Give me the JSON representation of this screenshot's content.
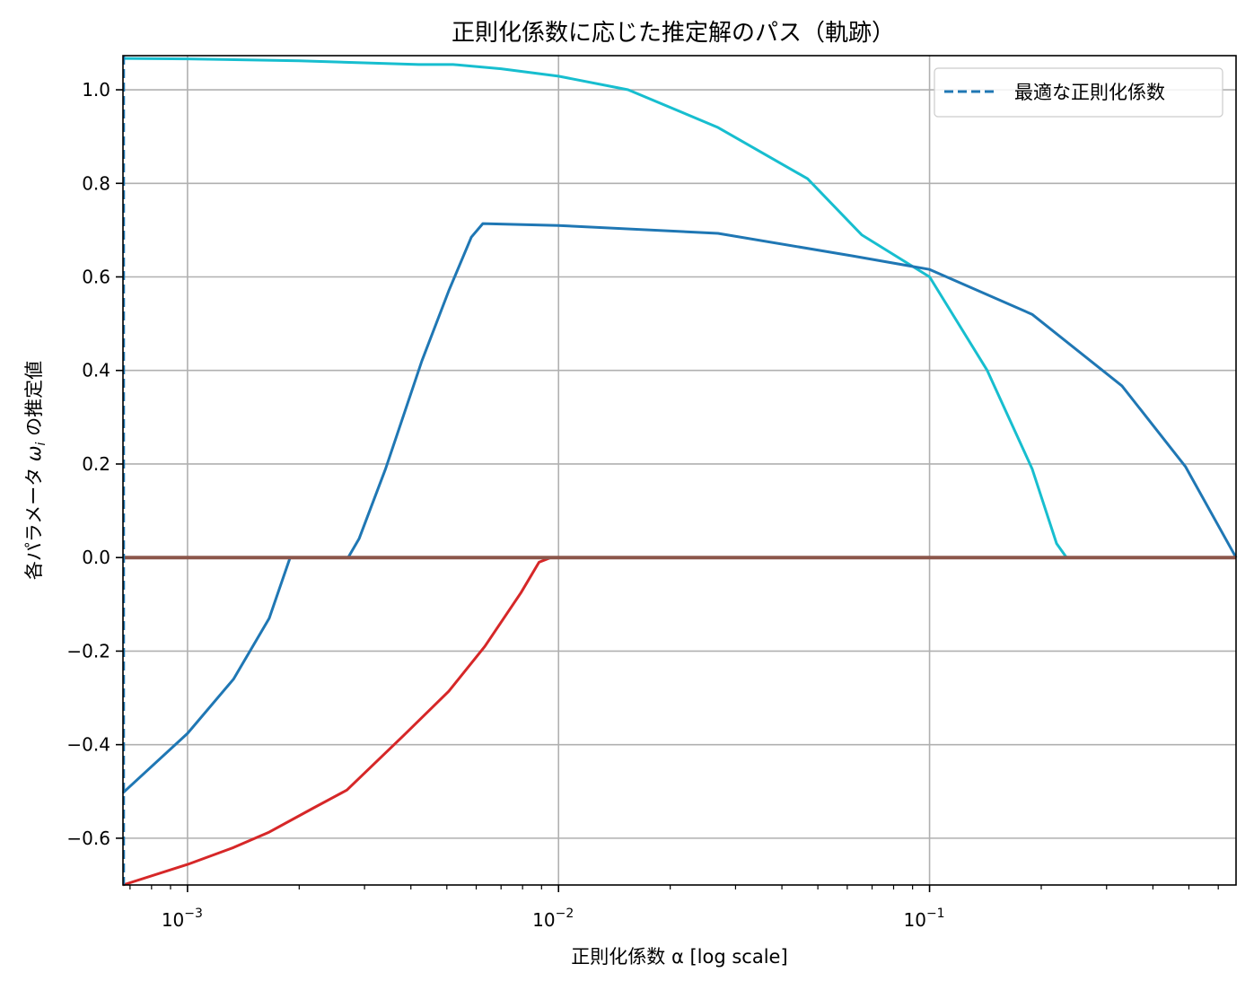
{
  "chart_data": {
    "type": "line",
    "title": "正則化係数に応じた推定解のパス（軌跡）",
    "xlabel": "正則化係数 α  [log scale]",
    "ylabel": "各パラメータ ω_i の推定値",
    "xscale": "log",
    "xlim": [
      0.00067,
      0.67
    ],
    "ylim": [
      -0.7,
      1.073
    ],
    "grid": true,
    "legend_position": "upper right",
    "x_ticks": [
      {
        "value": 0.001,
        "base": "10",
        "exp": "−3"
      },
      {
        "value": 0.01,
        "base": "10",
        "exp": "−2"
      },
      {
        "value": 0.1,
        "base": "10",
        "exp": "−1"
      }
    ],
    "y_ticks": [
      {
        "value": 1.0,
        "label": "1.0"
      },
      {
        "value": 0.8,
        "label": "0.8"
      },
      {
        "value": 0.6,
        "label": "0.6"
      },
      {
        "value": 0.4,
        "label": "0.4"
      },
      {
        "value": 0.2,
        "label": "0.2"
      },
      {
        "value": 0.0,
        "label": "0.0"
      },
      {
        "value": -0.2,
        "label": "−0.2"
      },
      {
        "value": -0.4,
        "label": "−0.4"
      },
      {
        "value": -0.6,
        "label": "−0.6"
      }
    ],
    "legend": [
      {
        "label": "最適な正則化係数",
        "color": "#1f77b4",
        "style": "dashed"
      }
    ],
    "vlines": [
      {
        "name": "optimal-alpha",
        "x": 0.00067,
        "color": "#1f77b4",
        "style": "dashed"
      }
    ],
    "series": [
      {
        "name": "w_cyan",
        "color": "#17becf",
        "points": [
          [
            0.00067,
            1.067
          ],
          [
            0.001,
            1.066
          ],
          [
            0.002,
            1.062
          ],
          [
            0.0042,
            1.054
          ],
          [
            0.0052,
            1.054
          ],
          [
            0.007,
            1.045
          ],
          [
            0.01,
            1.029
          ],
          [
            0.0154,
            1.0
          ],
          [
            0.0268,
            0.92
          ],
          [
            0.0469,
            0.81
          ],
          [
            0.0656,
            0.69
          ],
          [
            0.1,
            0.6
          ],
          [
            0.143,
            0.4
          ],
          [
            0.189,
            0.19
          ],
          [
            0.22,
            0.03
          ],
          [
            0.234,
            0.0
          ],
          [
            0.67,
            0.0
          ]
        ]
      },
      {
        "name": "w_blue",
        "color": "#1f77b4",
        "points": [
          [
            0.00067,
            -0.503
          ],
          [
            0.001,
            -0.376
          ],
          [
            0.00133,
            -0.26
          ],
          [
            0.00166,
            -0.13
          ],
          [
            0.00189,
            0.0
          ],
          [
            0.00271,
            0.0
          ],
          [
            0.0029,
            0.04
          ],
          [
            0.00342,
            0.19
          ],
          [
            0.00428,
            0.42
          ],
          [
            0.00506,
            0.57
          ],
          [
            0.00582,
            0.685
          ],
          [
            0.00625,
            0.714
          ],
          [
            0.01,
            0.71
          ],
          [
            0.0269,
            0.693
          ],
          [
            0.062,
            0.645
          ],
          [
            0.1,
            0.616
          ],
          [
            0.189,
            0.52
          ],
          [
            0.33,
            0.367
          ],
          [
            0.49,
            0.194
          ],
          [
            0.67,
            0.0
          ]
        ]
      },
      {
        "name": "w_red",
        "color": "#d62728",
        "points": [
          [
            0.00067,
            -0.7
          ],
          [
            0.001,
            -0.656
          ],
          [
            0.00133,
            -0.62
          ],
          [
            0.00166,
            -0.587
          ],
          [
            0.00219,
            -0.535
          ],
          [
            0.00269,
            -0.497
          ],
          [
            0.00383,
            -0.38
          ],
          [
            0.00506,
            -0.286
          ],
          [
            0.00633,
            -0.19
          ],
          [
            0.00792,
            -0.075
          ],
          [
            0.00886,
            -0.01
          ],
          [
            0.00953,
            0.0
          ],
          [
            0.67,
            0.0
          ]
        ]
      },
      {
        "name": "w_zero",
        "color": "#8c564b",
        "points": [
          [
            0.00067,
            0.0
          ],
          [
            0.67,
            0.0
          ]
        ]
      }
    ]
  }
}
